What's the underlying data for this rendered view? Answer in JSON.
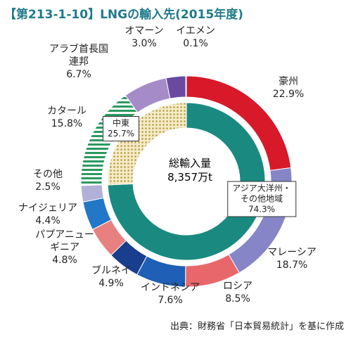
{
  "chart_data": {
    "type": "donut",
    "title": "【第213-1-10】LNGの輸入先(2015年度)",
    "center_title": "総輸入量",
    "center_value": "8,357万t",
    "source": "出典：財務省「日本貿易統計」を基に作成",
    "outer": {
      "categories": [
        "豪州",
        "マレーシア",
        "ロシア",
        "インドネシア",
        "ブルネイ",
        "パプアニュー\nギニア",
        "ナイジェリア",
        "その他",
        "カタール",
        "アラブ首長国\n連邦",
        "オマーン",
        "イエメン"
      ],
      "values": [
        22.9,
        18.7,
        8.5,
        7.6,
        4.9,
        4.8,
        4.4,
        2.5,
        15.8,
        6.7,
        3.0,
        0.1
      ],
      "value_labels": [
        "22.9%",
        "18.7%",
        "8.5%",
        "7.6%",
        "4.9%",
        "4.8%",
        "4.4%",
        "2.5%",
        "15.8%",
        "6.7%",
        "3.0%",
        "0.1%"
      ],
      "colors": [
        "#d7192a",
        "#8585c8",
        "#e8676b",
        "#1f5fb5",
        "#1a3e8e",
        "#e88080",
        "#2277c6",
        "#b0b0d8",
        "#2a9a60",
        "#a58cc8",
        "#6a4aa0",
        "#1a2a70"
      ],
      "patterns": [
        null,
        null,
        null,
        null,
        null,
        null,
        null,
        null,
        "stripes",
        null,
        null,
        null
      ]
    },
    "inner": {
      "categories": [
        "アジア大洋州・\nその他地域",
        "中東"
      ],
      "values": [
        74.3,
        25.7
      ],
      "value_labels": [
        "74.3%",
        "25.7%"
      ],
      "colors": [
        "#1a8a80",
        "#b89a40"
      ],
      "patterns": [
        null,
        "dots"
      ]
    }
  }
}
